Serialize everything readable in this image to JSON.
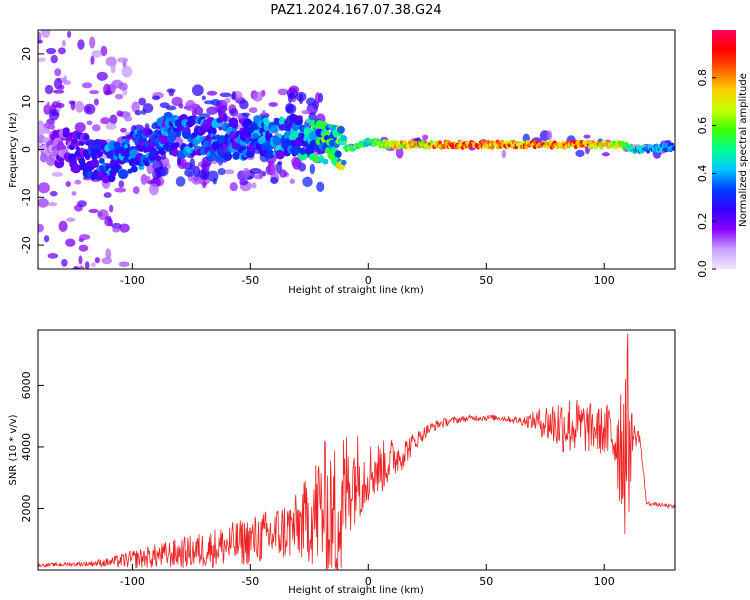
{
  "title": "PAZ1.2024.167.07.38.G24",
  "chart_data": [
    {
      "type": "heatmap",
      "xlabel": "Height of straight line (km)",
      "ylabel": "Frequency (Hz)",
      "xlim": [
        -140,
        130
      ],
      "ylim": [
        -25,
        25
      ],
      "xticks": [
        -100,
        -50,
        0,
        50,
        100
      ],
      "yticks": [
        -20,
        -10,
        0,
        10,
        20
      ],
      "colorbar": {
        "label": "Normalized spectral amplitude",
        "range": [
          0,
          1
        ],
        "ticks": [
          0.0,
          0.2,
          0.4,
          0.6,
          0.8
        ],
        "colormap": [
          "#f0e6ff",
          "#c8a0ff",
          "#8a00ff",
          "#3000ff",
          "#0040ff",
          "#00c8ff",
          "#00ff90",
          "#40ff00",
          "#c8ff00",
          "#ffd000",
          "#ff6000",
          "#ff0000",
          "#ff0060"
        ]
      },
      "ridge": {
        "description_points": [
          {
            "x": -140,
            "freq": 2,
            "amp": 0.1
          },
          {
            "x": -110,
            "freq": -3,
            "amp": 0.35
          },
          {
            "x": -85,
            "freq": 3,
            "amp": 0.35
          },
          {
            "x": -60,
            "freq": 2,
            "amp": 0.35
          },
          {
            "x": -30,
            "freq": 3,
            "amp": 0.4
          },
          {
            "x": -10,
            "freq": 0,
            "amp": 0.65
          },
          {
            "x": 0,
            "freq": 1.5,
            "amp": 0.55
          },
          {
            "x": 10,
            "freq": 1,
            "amp": 0.8
          },
          {
            "x": 50,
            "freq": 1,
            "amp": 0.95
          },
          {
            "x": 90,
            "freq": 1,
            "amp": 0.9
          },
          {
            "x": 108,
            "freq": 1,
            "amp": 0.7
          },
          {
            "x": 112,
            "freq": 0,
            "amp": 0.5
          },
          {
            "x": 130,
            "freq": 0.5,
            "amp": 0.4
          }
        ]
      }
    },
    {
      "type": "line",
      "xlabel": "Height of straight line (km)",
      "ylabel": "SNR (10 * v/v)",
      "xlim": [
        -140,
        130
      ],
      "ylim": [
        0,
        7800
      ],
      "xticks": [
        -100,
        -50,
        0,
        50,
        100
      ],
      "yticks": [
        2000,
        4000,
        6000
      ],
      "line_color": "#ee2222",
      "series": [
        {
          "x": [
            -140,
            -130,
            -120,
            -110,
            -100,
            -90,
            -80,
            -70,
            -60,
            -50,
            -40,
            -30,
            -25,
            -20,
            -15,
            -12,
            -10,
            -8,
            -5,
            -2,
            0,
            5,
            10,
            15,
            20,
            25,
            30,
            35,
            40,
            45,
            50,
            55,
            60,
            65,
            70,
            75,
            80,
            85,
            90,
            95,
            100,
            105,
            108,
            110,
            112,
            115,
            118,
            120,
            125,
            130
          ],
          "values": [
            150,
            180,
            200,
            250,
            350,
            450,
            550,
            650,
            800,
            950,
            1150,
            1400,
            1700,
            2000,
            1800,
            1500,
            2500,
            2900,
            3100,
            3000,
            3200,
            3300,
            3600,
            3800,
            4200,
            4550,
            4750,
            4850,
            4900,
            4950,
            4950,
            4950,
            4900,
            4850,
            4850,
            4800,
            4750,
            4700,
            4650,
            4600,
            4500,
            4300,
            4200,
            4300,
            4350,
            4350,
            2150,
            2150,
            2100,
            2050
          ],
          "noise_amplitude": [
            50,
            60,
            80,
            150,
            300,
            400,
            500,
            600,
            700,
            800,
            900,
            1100,
            1500,
            2200,
            2500,
            2800,
            2200,
            1800,
            1500,
            1200,
            1000,
            900,
            700,
            500,
            300,
            200,
            150,
            120,
            100,
            100,
            100,
            100,
            100,
            150,
            300,
            600,
            900,
            1000,
            900,
            800,
            800,
            1500,
            3000,
            3500,
            500,
            200,
            80,
            60,
            60,
            60
          ]
        }
      ]
    }
  ]
}
